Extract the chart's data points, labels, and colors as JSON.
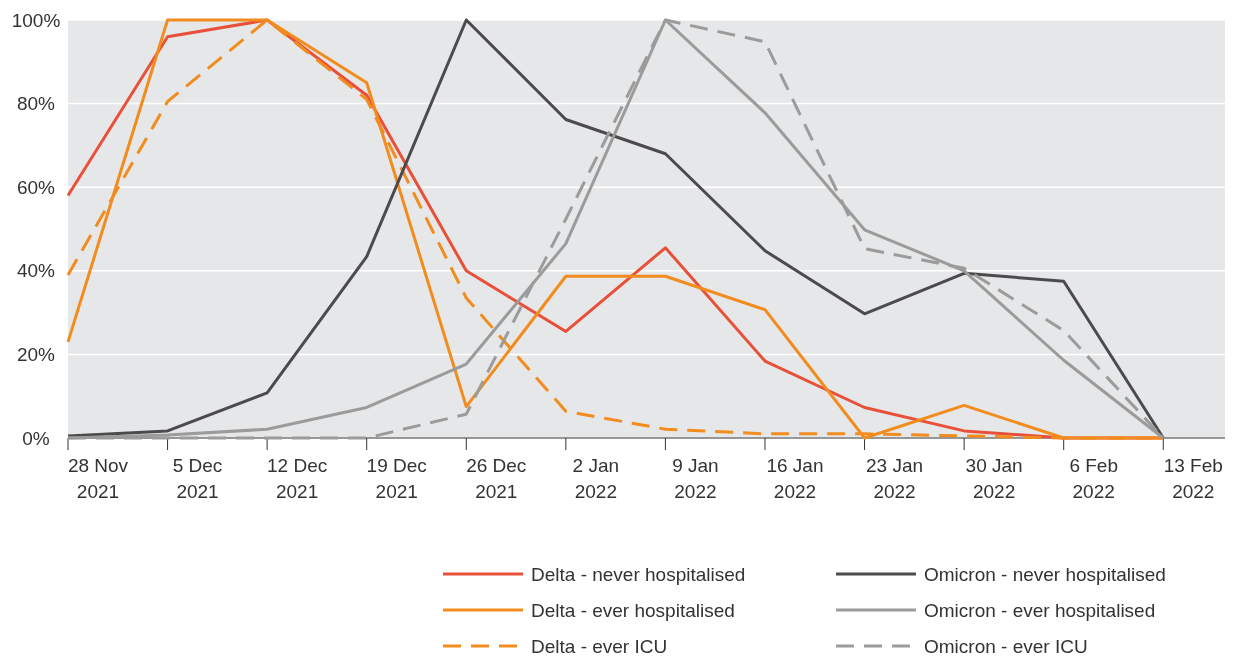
{
  "chart_data": {
    "type": "line",
    "categories": [
      "28 Nov 2021",
      "5 Dec 2021",
      "12 Dec 2021",
      "19 Dec 2021",
      "26 Dec 2021",
      "2 Jan 2022",
      "9 Jan 2022",
      "16 Jan 2022",
      "23 Jan 2022",
      "30 Jan 2022",
      "6 Feb 2022",
      "13 Feb 2022"
    ],
    "series": [
      {
        "name": "Delta - never hospitalised",
        "color": "#e8503a",
        "line_style": "solid",
        "values": [
          58,
          96,
          100,
          82,
          40,
          25.5,
          45.5,
          18.4,
          7.3,
          1.7,
          0,
          0
        ]
      },
      {
        "name": "Delta - ever hospitalised",
        "color": "#f28c1e",
        "line_style": "solid",
        "values": [
          23,
          100,
          100,
          85,
          7.5,
          38.7,
          38.7,
          30.7,
          0,
          7.8,
          0,
          0
        ]
      },
      {
        "name": "Delta - ever ICU",
        "color": "#f28c1e",
        "line_style": "dashed",
        "values": [
          39,
          80.5,
          100,
          81,
          33.5,
          6.4,
          2.1,
          1,
          1,
          0.5,
          0,
          0
        ]
      },
      {
        "name": "Omicron - never hospitalised",
        "color": "#4b4b4d",
        "line_style": "solid",
        "values": [
          0.5,
          1.7,
          10.8,
          43.4,
          100,
          76.2,
          68,
          44.8,
          29.7,
          39.4,
          37.5,
          0
        ]
      },
      {
        "name": "Omicron - ever hospitalised",
        "color": "#9b9b9b",
        "line_style": "solid",
        "values": [
          0,
          0.7,
          2.1,
          7.3,
          17.7,
          46.5,
          100,
          77.8,
          49.8,
          40,
          18.6,
          0
        ]
      },
      {
        "name": "Omicron - ever ICU",
        "color": "#9b9b9b",
        "line_style": "dashed",
        "values": [
          0,
          0,
          0,
          0,
          5.7,
          52.4,
          100,
          94.8,
          45.3,
          40.6,
          25.7,
          0
        ]
      }
    ],
    "ylim": [
      0,
      100
    ],
    "yticks": [
      {
        "value": 0,
        "label": "0%"
      },
      {
        "value": 20,
        "label": "20%"
      },
      {
        "value": 40,
        "label": "40%"
      },
      {
        "value": 60,
        "label": "60%"
      },
      {
        "value": 80,
        "label": "80%"
      },
      {
        "value": 100,
        "label": "100%"
      }
    ],
    "grid": "y",
    "legend": "bottom"
  }
}
